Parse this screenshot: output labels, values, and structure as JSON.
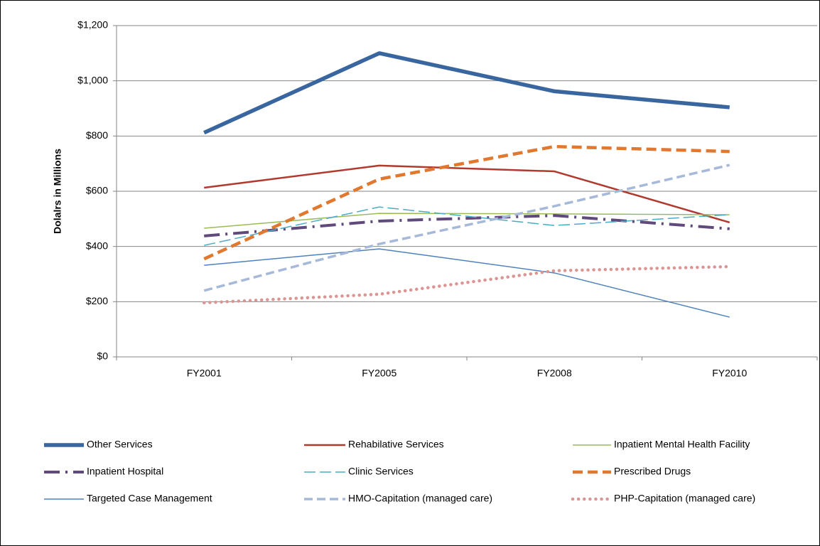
{
  "chart_data": {
    "type": "line",
    "y_label": "Dolalrs in Millions",
    "categories": [
      "FY2001",
      "FY2005",
      "FY2008",
      "FY2010"
    ],
    "ylim": [
      0,
      1200
    ],
    "yticks": [
      {
        "value": 0,
        "label": "$0"
      },
      {
        "value": 200,
        "label": "$200"
      },
      {
        "value": 400,
        "label": "$400"
      },
      {
        "value": 600,
        "label": "$600"
      },
      {
        "value": 800,
        "label": "$800"
      },
      {
        "value": 1000,
        "label": "$1,000"
      },
      {
        "value": 1200,
        "label": "$1,200"
      }
    ],
    "grid": true,
    "legend": "bottom",
    "series": [
      {
        "name": "Other Services",
        "color": "#3a66a0",
        "values": [
          812,
          1100,
          962,
          904
        ]
      },
      {
        "name": "Rehabilative Services",
        "color": "#b03a2e",
        "values": [
          613,
          693,
          672,
          487
        ]
      },
      {
        "name": "Inpatient Mental Health Facility",
        "color": "#9bbb59",
        "values": [
          466,
          520,
          518,
          515
        ]
      },
      {
        "name": "Inpatient Hospital",
        "color": "#604a7b",
        "values": [
          438,
          492,
          512,
          464
        ]
      },
      {
        "name": "Clinic Services",
        "color": "#4bacc6",
        "values": [
          404,
          543,
          476,
          515
        ]
      },
      {
        "name": "Prescribed Drugs",
        "color": "#e0782f",
        "values": [
          355,
          644,
          762,
          744
        ]
      },
      {
        "name": "Targeted Case Management",
        "color": "#4f81bd",
        "values": [
          332,
          391,
          304,
          144
        ]
      },
      {
        "name": "HMO-Capitation (managed care)",
        "color": "#a7b9d9",
        "values": [
          240,
          409,
          546,
          695
        ]
      },
      {
        "name": "PHP-Capitation (managed care)",
        "color": "#d99694",
        "values": [
          196,
          227,
          312,
          327
        ]
      }
    ]
  }
}
